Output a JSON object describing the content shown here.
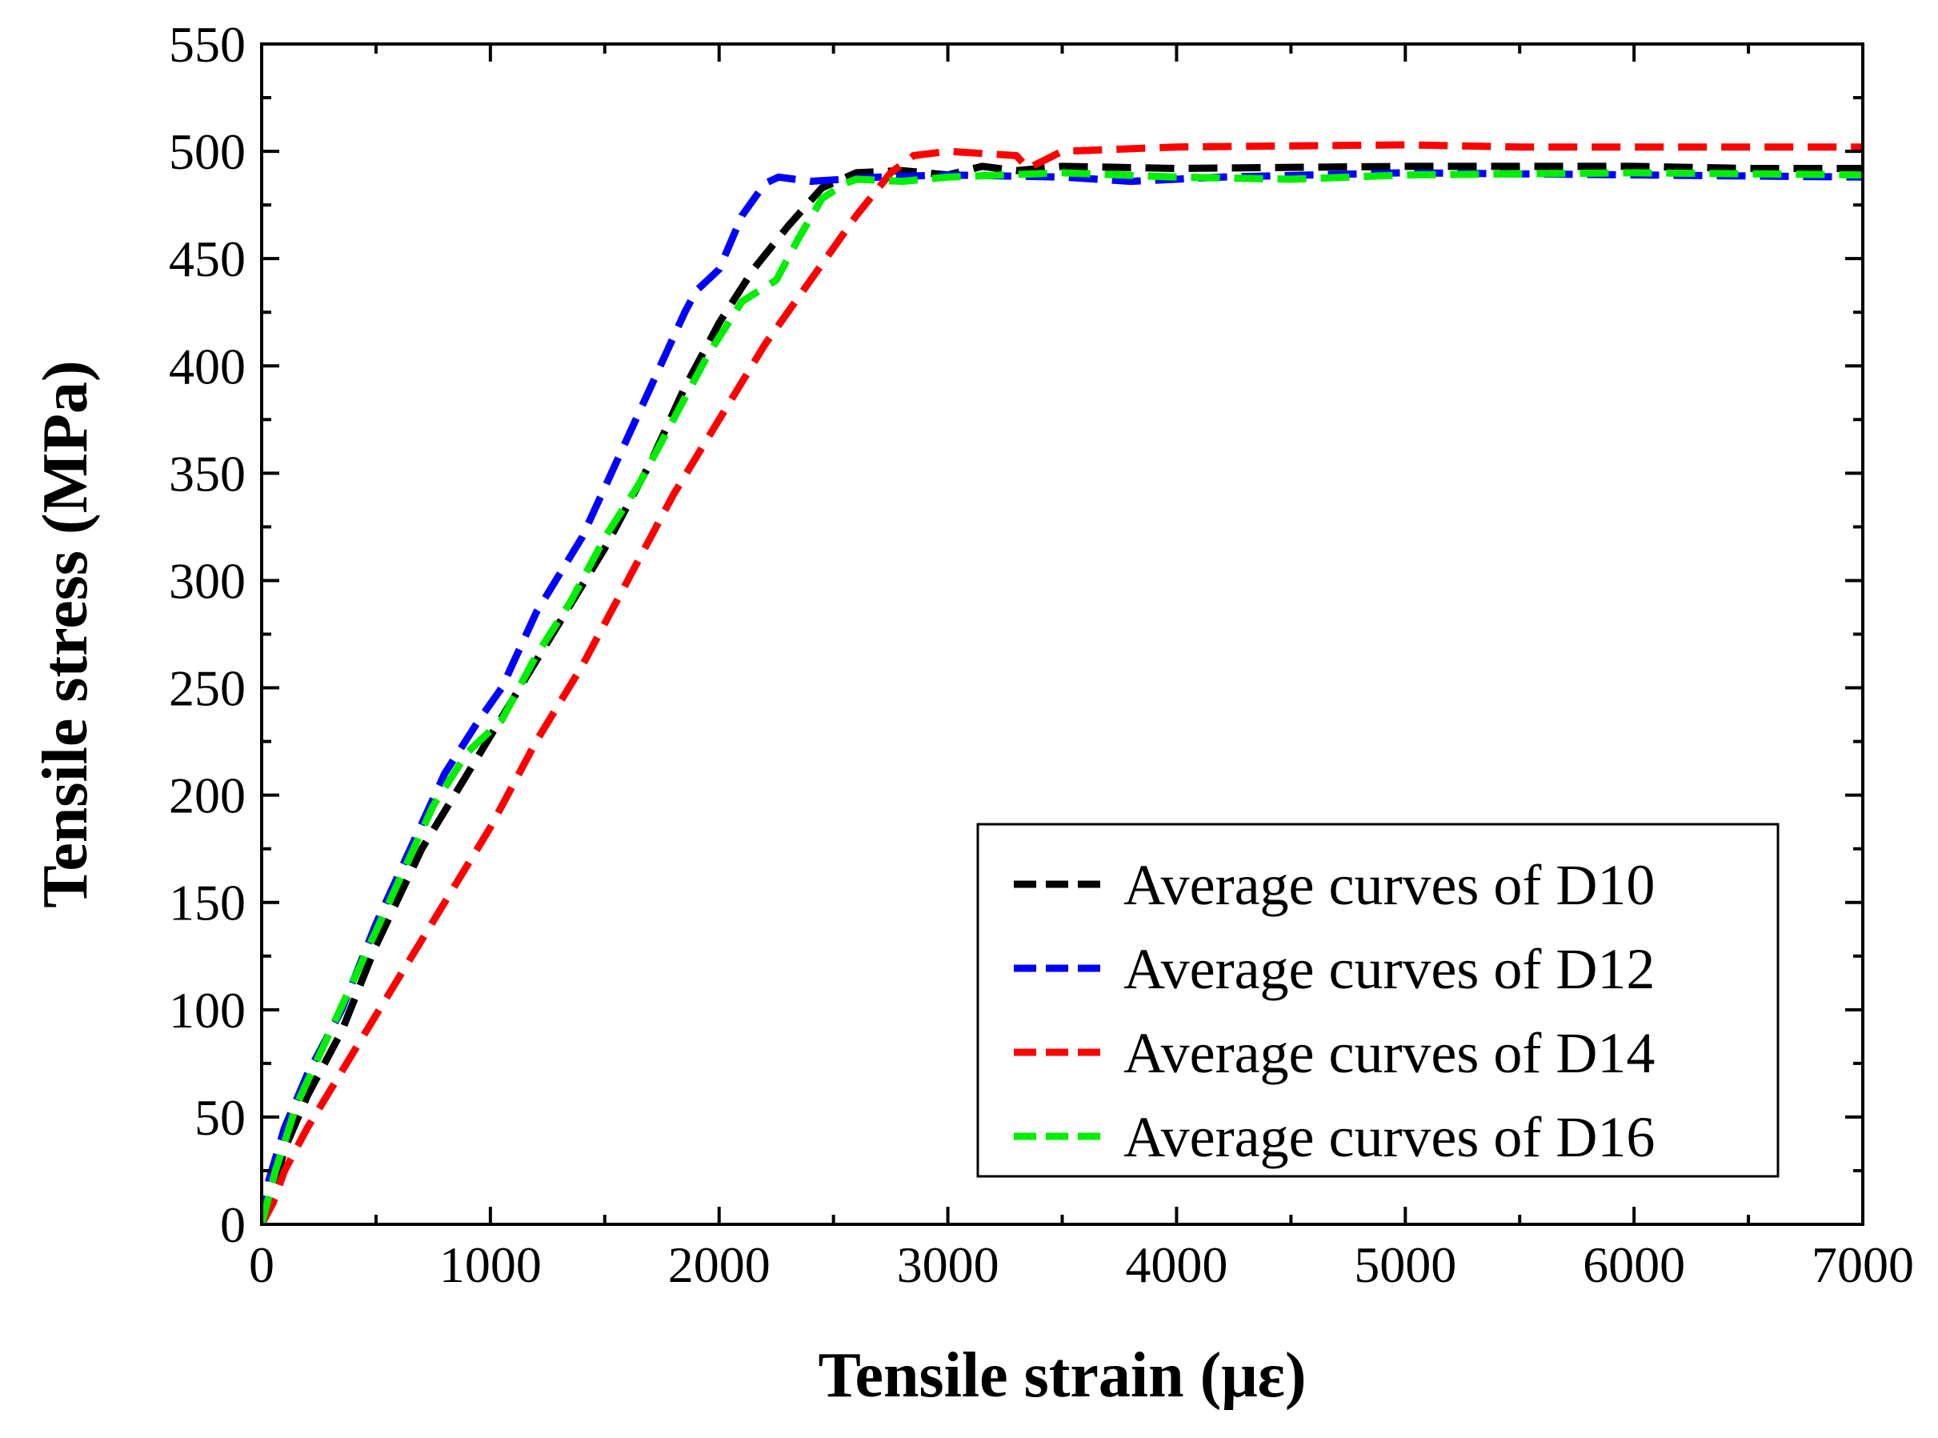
{
  "chart_data": {
    "type": "line",
    "title": "",
    "xlabel": "Tensile strain (με)",
    "ylabel": "Tensile stress (MPa)",
    "xlim": [
      0,
      7000
    ],
    "ylim": [
      0,
      550
    ],
    "xticks": [
      0,
      1000,
      2000,
      3000,
      4000,
      5000,
      6000,
      7000
    ],
    "yticks": [
      0,
      50,
      100,
      150,
      200,
      250,
      300,
      350,
      400,
      450,
      500,
      550
    ],
    "x_minor_step": 500,
    "y_minor_step": 25,
    "grid": false,
    "legend_position": "bottom-right",
    "series": [
      {
        "name": "Average curves of D10",
        "color": "#000000",
        "points": [
          [
            0,
            0
          ],
          [
            50,
            15
          ],
          [
            100,
            35
          ],
          [
            200,
            60
          ],
          [
            350,
            90
          ],
          [
            500,
            130
          ],
          [
            700,
            175
          ],
          [
            900,
            210
          ],
          [
            1100,
            245
          ],
          [
            1300,
            280
          ],
          [
            1500,
            315
          ],
          [
            1700,
            355
          ],
          [
            1850,
            390
          ],
          [
            2000,
            420
          ],
          [
            2150,
            445
          ],
          [
            2300,
            465
          ],
          [
            2450,
            483
          ],
          [
            2600,
            490
          ],
          [
            2800,
            491
          ],
          [
            3000,
            489
          ],
          [
            3150,
            493
          ],
          [
            3300,
            491
          ],
          [
            3500,
            493
          ],
          [
            4000,
            492
          ],
          [
            5000,
            493
          ],
          [
            6000,
            493
          ],
          [
            6500,
            492
          ],
          [
            7000,
            492
          ]
        ]
      },
      {
        "name": "Average curves of D12",
        "color": "#0000ff",
        "points": [
          [
            0,
            0
          ],
          [
            30,
            20
          ],
          [
            100,
            45
          ],
          [
            200,
            70
          ],
          [
            350,
            100
          ],
          [
            500,
            140
          ],
          [
            650,
            175
          ],
          [
            800,
            210
          ],
          [
            950,
            235
          ],
          [
            1050,
            250
          ],
          [
            1200,
            285
          ],
          [
            1400,
            320
          ],
          [
            1550,
            355
          ],
          [
            1700,
            390
          ],
          [
            1850,
            425
          ],
          [
            1900,
            435
          ],
          [
            2000,
            445
          ],
          [
            2100,
            470
          ],
          [
            2200,
            485
          ],
          [
            2260,
            488
          ],
          [
            2400,
            486
          ],
          [
            2700,
            488
          ],
          [
            3000,
            489
          ],
          [
            3500,
            488
          ],
          [
            3800,
            486
          ],
          [
            4200,
            488
          ],
          [
            5000,
            490
          ],
          [
            6000,
            489
          ],
          [
            7000,
            488
          ]
        ]
      },
      {
        "name": "Average curves of D14",
        "color": "#ff0000",
        "points": [
          [
            0,
            0
          ],
          [
            50,
            10
          ],
          [
            100,
            25
          ],
          [
            200,
            45
          ],
          [
            400,
            80
          ],
          [
            600,
            115
          ],
          [
            800,
            150
          ],
          [
            1000,
            185
          ],
          [
            1200,
            225
          ],
          [
            1400,
            260
          ],
          [
            1600,
            300
          ],
          [
            1800,
            340
          ],
          [
            2000,
            375
          ],
          [
            2200,
            410
          ],
          [
            2400,
            440
          ],
          [
            2600,
            470
          ],
          [
            2750,
            490
          ],
          [
            2850,
            498
          ],
          [
            3000,
            500
          ],
          [
            3300,
            498
          ],
          [
            3350,
            492
          ],
          [
            3500,
            500
          ],
          [
            4000,
            502
          ],
          [
            5000,
            503
          ],
          [
            5500,
            502
          ],
          [
            6000,
            502
          ],
          [
            7000,
            502
          ]
        ]
      },
      {
        "name": "Average curves of D16",
        "color": "#00ee00",
        "points": [
          [
            0,
            0
          ],
          [
            60,
            25
          ],
          [
            150,
            55
          ],
          [
            300,
            90
          ],
          [
            450,
            125
          ],
          [
            600,
            160
          ],
          [
            750,
            195
          ],
          [
            900,
            220
          ],
          [
            1050,
            235
          ],
          [
            1200,
            265
          ],
          [
            1350,
            290
          ],
          [
            1500,
            320
          ],
          [
            1650,
            345
          ],
          [
            1800,
            375
          ],
          [
            1950,
            405
          ],
          [
            2100,
            430
          ],
          [
            2250,
            440
          ],
          [
            2350,
            460
          ],
          [
            2450,
            478
          ],
          [
            2550,
            485
          ],
          [
            2600,
            487
          ],
          [
            2800,
            486
          ],
          [
            3000,
            488
          ],
          [
            3500,
            490
          ],
          [
            4000,
            488
          ],
          [
            4500,
            487
          ],
          [
            5000,
            489
          ],
          [
            6000,
            490
          ],
          [
            7000,
            489
          ]
        ]
      }
    ]
  }
}
